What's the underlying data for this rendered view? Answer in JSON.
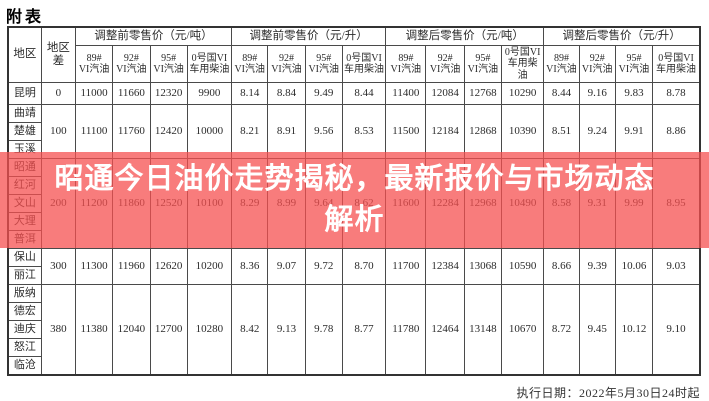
{
  "page": {
    "title": "附表",
    "footer": "执行日期：2022年5月30日24时起"
  },
  "banner": {
    "lines": [
      "昭通今日油价走势揭秘，最新报价与市场动态",
      "解析"
    ],
    "bg_color": "rgba(246,80,80,0.75)",
    "text_color": "#ffffff"
  },
  "table": {
    "corner_headers": [
      "地区",
      "地区差"
    ],
    "group_headers": [
      {
        "label": "调整前零售价（元/吨）",
        "cols": [
          "89#\nVI汽油",
          "92#\nVI汽油",
          "95#\nVI汽油",
          "0号国VI\n车用柴油"
        ]
      },
      {
        "label": "调整前零售价（元/升）",
        "cols": [
          "89#\nVI汽油",
          "92#\nVI汽油",
          "95#\nVI汽油",
          "0号国VI\n车用柴油"
        ]
      },
      {
        "label": "调整后零售价（元/吨）",
        "cols": [
          "89#\nVI汽油",
          "92#\nVI汽油",
          "95#\nVI汽油",
          "0号国VI\n车用柴油"
        ]
      },
      {
        "label": "调整后零售价（元/升）",
        "cols": [
          "89#\nVI汽油",
          "92#\nVI汽油",
          "95#\nVI汽油",
          "0号国VI\n车用柴油"
        ]
      }
    ],
    "row_groups": [
      {
        "regions": [
          "昆明"
        ],
        "diff": "0",
        "values": [
          "11000",
          "11660",
          "12320",
          "9900",
          "8.14",
          "8.84",
          "9.49",
          "8.44",
          "11400",
          "12084",
          "12768",
          "10290",
          "8.44",
          "9.16",
          "9.83",
          "8.78"
        ]
      },
      {
        "regions": [
          "曲靖",
          "楚雄",
          "玉溪"
        ],
        "diff": "100",
        "values": [
          "11100",
          "11760",
          "12420",
          "10000",
          "8.21",
          "8.91",
          "9.56",
          "8.53",
          "11500",
          "12184",
          "12868",
          "10390",
          "8.51",
          "9.24",
          "9.91",
          "8.86"
        ]
      },
      {
        "regions": [
          "昭通",
          "红河",
          "文山",
          "大理",
          "普洱"
        ],
        "diff": "200",
        "values": [
          "11200",
          "11860",
          "12520",
          "10100",
          "8.29",
          "8.99",
          "9.64",
          "8.62",
          "11600",
          "12284",
          "12968",
          "10490",
          "8.58",
          "9.31",
          "9.99",
          "8.95"
        ]
      },
      {
        "regions": [
          "保山",
          "丽江"
        ],
        "diff": "300",
        "values": [
          "11300",
          "11960",
          "12620",
          "10200",
          "8.36",
          "9.07",
          "9.72",
          "8.70",
          "11700",
          "12384",
          "13068",
          "10590",
          "8.66",
          "9.39",
          "10.06",
          "9.03"
        ]
      },
      {
        "regions": [
          "版纳",
          "德宏",
          "迪庆",
          "怒江",
          "临沧"
        ],
        "diff": "380",
        "values": [
          "11380",
          "12040",
          "12700",
          "10280",
          "8.42",
          "9.13",
          "9.78",
          "8.77",
          "11780",
          "12464",
          "13148",
          "10670",
          "8.72",
          "9.45",
          "10.12",
          "9.10"
        ]
      }
    ]
  }
}
